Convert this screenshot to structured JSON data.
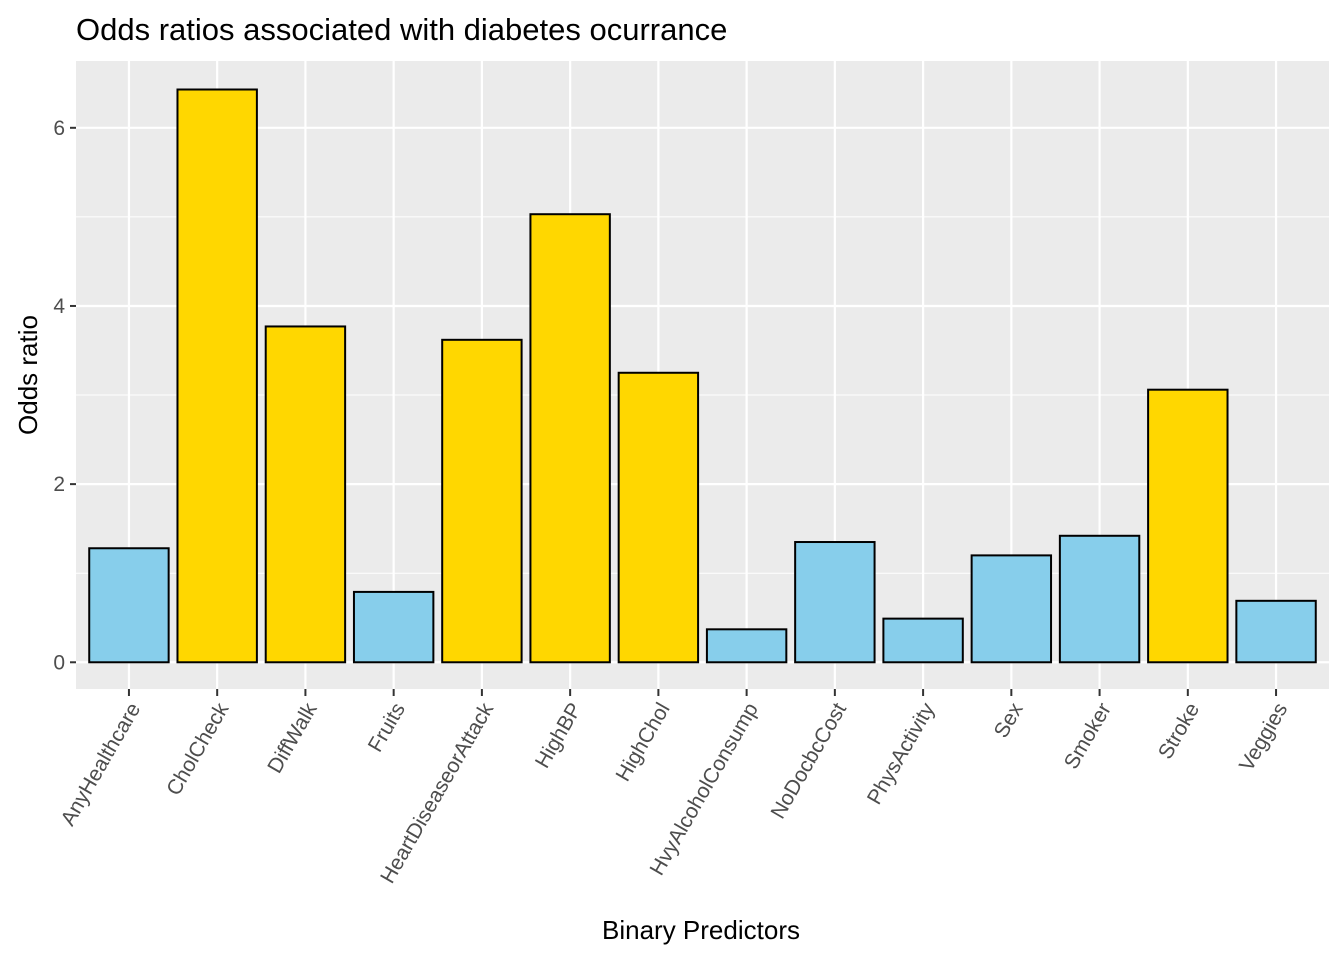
{
  "chart_data": {
    "type": "bar",
    "title": "Odds ratios associated with diabetes ocurrance",
    "xlabel": "Binary Predictors",
    "ylabel": "Odds ratio",
    "categories": [
      "AnyHealthcare",
      "CholCheck",
      "DiffWalk",
      "Fruits",
      "HeartDiseaseorAttack",
      "HighBP",
      "HighChol",
      "HvyAlcoholConsump",
      "NoDocbcCost",
      "PhysActivity",
      "Sex",
      "Smoker",
      "Stroke",
      "Veggies"
    ],
    "values": [
      1.28,
      6.43,
      3.77,
      0.79,
      3.62,
      5.03,
      3.25,
      0.37,
      1.35,
      0.49,
      1.2,
      1.42,
      3.06,
      0.69
    ],
    "bar_colors": [
      "#87CEEB",
      "#FFD700",
      "#FFD700",
      "#87CEEB",
      "#FFD700",
      "#FFD700",
      "#FFD700",
      "#87CEEB",
      "#87CEEB",
      "#87CEEB",
      "#87CEEB",
      "#87CEEB",
      "#FFD700",
      "#87CEEB"
    ],
    "ylim": [
      -0.3,
      6.75
    ],
    "yticks": [
      0,
      2,
      4,
      6
    ],
    "grid": true,
    "legend": "none",
    "panel_background": "#EBEBEB",
    "grid_color": "#FFFFFF",
    "bar_outline": "#000000"
  }
}
